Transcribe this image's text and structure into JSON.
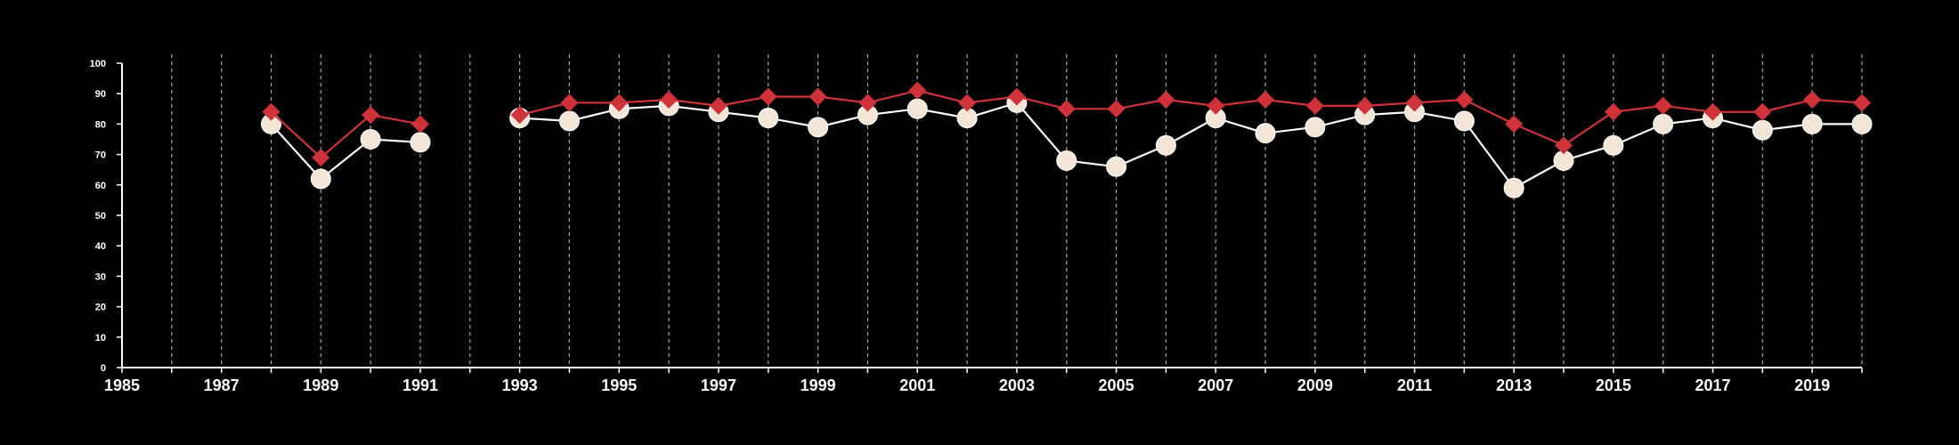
{
  "chart_data": {
    "type": "line",
    "title": "",
    "xlabel": "",
    "ylabel": "",
    "xlim": [
      1985,
      2020
    ],
    "ylim": [
      0,
      100
    ],
    "y_ticks": [
      0,
      10,
      20,
      30,
      40,
      50,
      60,
      70,
      80,
      90,
      100
    ],
    "x_tick_labels": [
      1985,
      1987,
      1989,
      1991,
      1993,
      1995,
      1997,
      1999,
      2001,
      2003,
      2005,
      2007,
      2009,
      2011,
      2013,
      2015,
      2017,
      2019
    ],
    "vertical_gridlines": "dashed, every year",
    "background": "#000000",
    "series": [
      {
        "marker": "circle",
        "color": "#f3e6d7",
        "line_color": "#ffffff",
        "x": [
          1988,
          1989,
          1990,
          1991,
          1993,
          1994,
          1995,
          1996,
          1997,
          1998,
          1999,
          2000,
          2001,
          2002,
          2003,
          2004,
          2005,
          2006,
          2007,
          2008,
          2009,
          2010,
          2011,
          2012,
          2013,
          2014,
          2015,
          2016,
          2017,
          2018,
          2019,
          2020
        ],
        "values": [
          80,
          62,
          75,
          74,
          82,
          81,
          85,
          86,
          84,
          82,
          79,
          83,
          85,
          82,
          87,
          68,
          66,
          73,
          82,
          77,
          79,
          83,
          84,
          81,
          59,
          68,
          73,
          80,
          82,
          78,
          80,
          80
        ]
      },
      {
        "marker": "diamond",
        "color": "#d0323a",
        "line_color": "#d0323a",
        "x": [
          1988,
          1989,
          1990,
          1991,
          1993,
          1994,
          1995,
          1996,
          1997,
          1998,
          1999,
          2000,
          2001,
          2002,
          2003,
          2004,
          2005,
          2006,
          2007,
          2008,
          2009,
          2010,
          2011,
          2012,
          2013,
          2014,
          2015,
          2016,
          2017,
          2018,
          2019,
          2020
        ],
        "values": [
          84,
          69,
          83,
          80,
          83,
          87,
          87,
          88,
          86,
          89,
          89,
          87,
          91,
          87,
          89,
          85,
          85,
          88,
          86,
          88,
          86,
          86,
          87,
          88,
          80,
          73,
          84,
          86,
          84,
          84,
          88,
          87
        ]
      }
    ]
  }
}
